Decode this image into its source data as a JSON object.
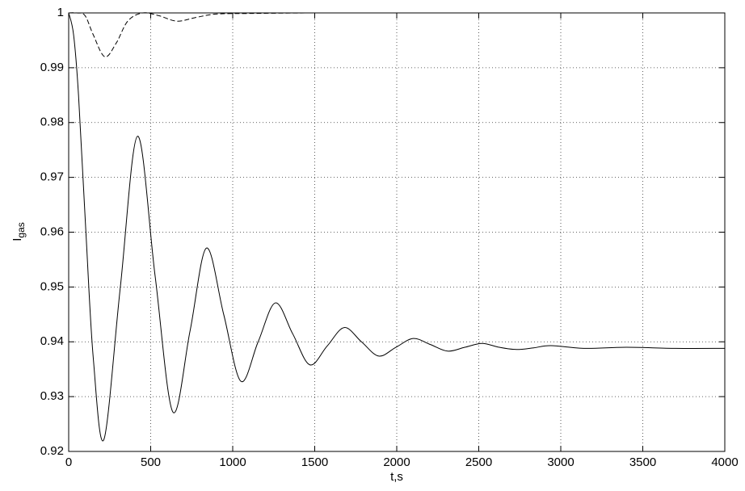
{
  "chart_data": {
    "type": "line",
    "xlabel": "t,s",
    "ylabel": "I",
    "ylabel_subscript": "gas",
    "xlim": [
      0,
      4000
    ],
    "xticks": [
      0,
      500,
      1000,
      1500,
      2000,
      2500,
      3000,
      3500,
      4000
    ],
    "ylim": [
      0.92,
      1
    ],
    "yticks": [
      0.92,
      0.93,
      0.94,
      0.95,
      0.96,
      0.97,
      0.98,
      0.99,
      1
    ],
    "grid": true,
    "series": [
      {
        "color": "#000000",
        "dash": "solid",
        "x": [
          0,
          30,
          60,
          105,
          150,
          215,
          315,
          420,
          527,
          635,
          740,
          840,
          945,
          1050,
          1155,
          1260,
          1365,
          1470,
          1575,
          1680,
          1785,
          1890,
          1995,
          2100,
          2205,
          2310,
          2415,
          2520,
          2625,
          2730,
          2835,
          2940,
          3150,
          3400,
          3700,
          4000
        ],
        "values": [
          1,
          0.996,
          0.985,
          0.96,
          0.937,
          0.9222,
          0.95,
          0.9775,
          0.952,
          0.9272,
          0.942,
          0.9571,
          0.945,
          0.9328,
          0.94,
          0.9471,
          0.9415,
          0.9358,
          0.9392,
          0.9426,
          0.94,
          0.9374,
          0.939,
          0.9406,
          0.9395,
          0.9383,
          0.939,
          0.9397,
          0.939,
          0.9386,
          0.9389,
          0.9393,
          0.9388,
          0.939,
          0.9388,
          0.9388
        ]
      },
      {
        "color": "#000000",
        "dash": "dashed",
        "x": [
          0,
          50,
          100,
          150,
          220,
          290,
          360,
          450,
          550,
          660,
          780,
          900,
          1100,
          1500,
          2000,
          4000
        ],
        "values": [
          1,
          1,
          0.9995,
          0.996,
          0.992,
          0.9945,
          0.9985,
          1,
          0.9995,
          0.9985,
          0.9992,
          0.9998,
          0.9999,
          1,
          1,
          1
        ]
      }
    ]
  }
}
